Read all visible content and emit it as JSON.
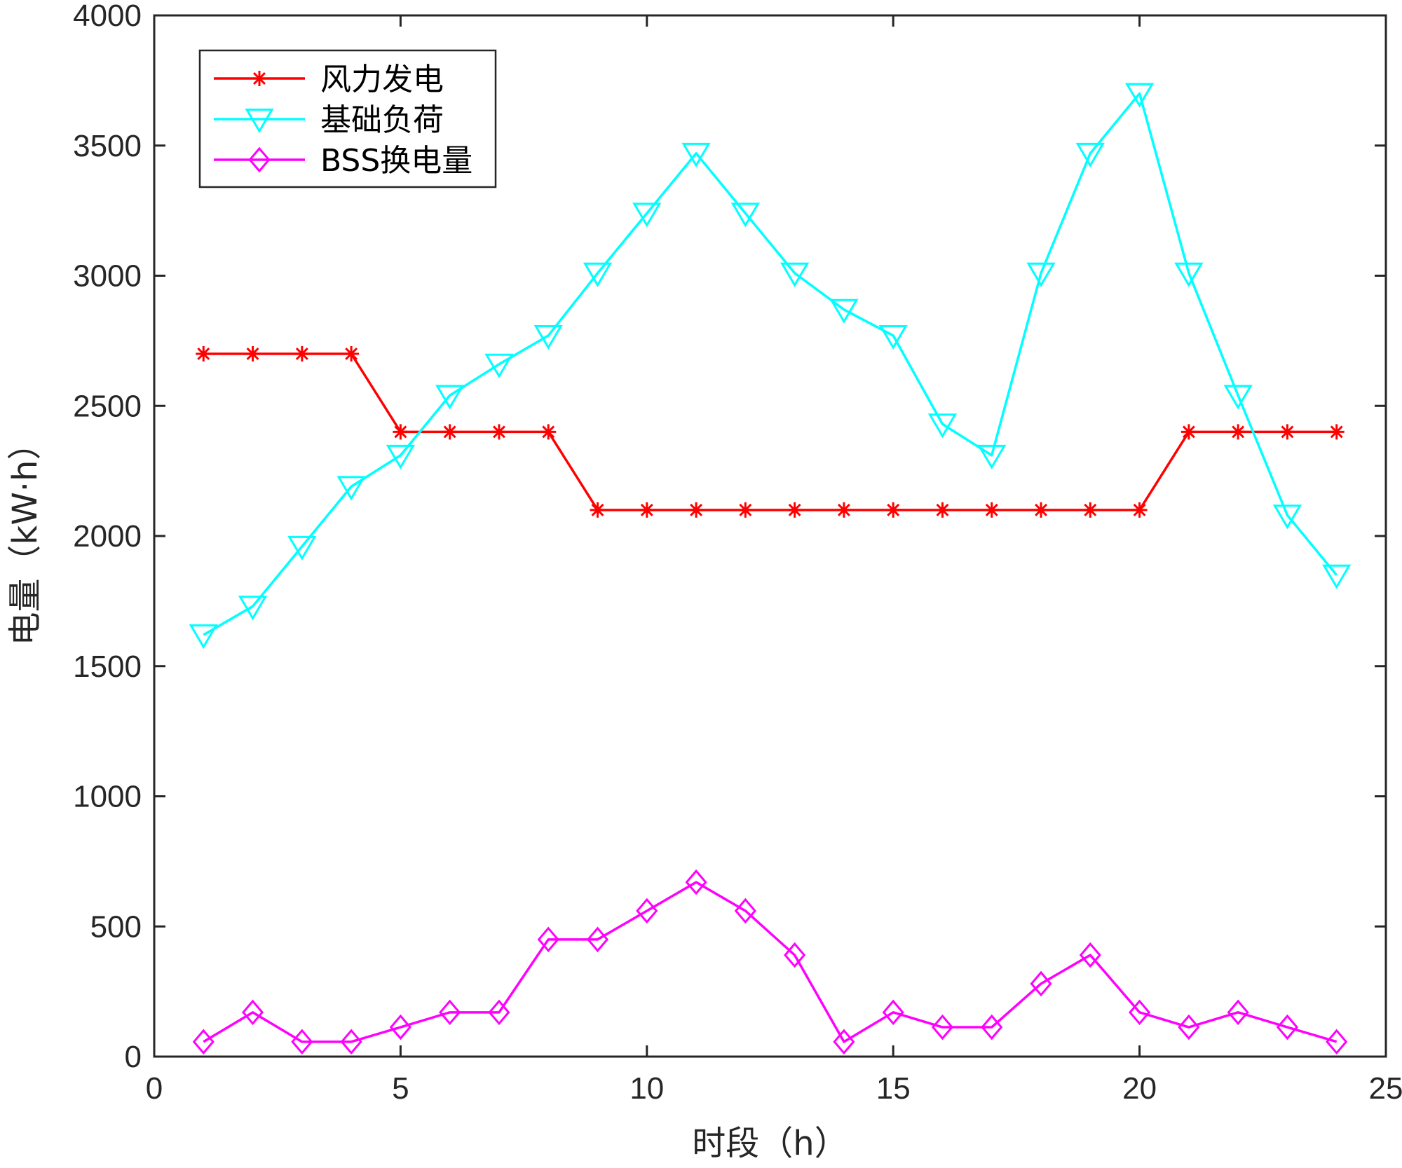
{
  "chart_data": {
    "type": "line",
    "xlabel": "时段（h）",
    "ylabel": "电量（kW·h）",
    "xlim": [
      0,
      25
    ],
    "ylim": [
      0,
      4000
    ],
    "xticks": [
      0,
      5,
      10,
      15,
      20,
      25
    ],
    "yticks": [
      0,
      500,
      1000,
      1500,
      2000,
      2500,
      3000,
      3500,
      4000
    ],
    "grid": false,
    "legend_position": "top-left",
    "x": [
      1,
      2,
      3,
      4,
      5,
      6,
      7,
      8,
      9,
      10,
      11,
      12,
      13,
      14,
      15,
      16,
      17,
      18,
      19,
      20,
      21,
      22,
      23,
      24
    ],
    "series": [
      {
        "name": "风力发电",
        "color": "#ff0000",
        "marker": "asterisk",
        "values": [
          2700,
          2700,
          2700,
          2700,
          2400,
          2400,
          2400,
          2400,
          2100,
          2100,
          2100,
          2100,
          2100,
          2100,
          2100,
          2100,
          2100,
          2100,
          2100,
          2100,
          2400,
          2400,
          2400,
          2400
        ]
      },
      {
        "name": "基础负荷",
        "color": "#00ffff",
        "marker": "triangle-down",
        "values": [
          1620,
          1730,
          1960,
          2190,
          2310,
          2540,
          2660,
          2770,
          3010,
          3240,
          3470,
          3240,
          3010,
          2870,
          2770,
          2430,
          2310,
          3010,
          3470,
          3700,
          3010,
          2540,
          2080,
          1850
        ]
      },
      {
        "name": "BSS换电量",
        "color": "#ff00ff",
        "marker": "diamond",
        "values": [
          57,
          170,
          57,
          57,
          113,
          170,
          170,
          450,
          450,
          560,
          670,
          560,
          390,
          57,
          170,
          113,
          113,
          280,
          390,
          170,
          113,
          170,
          113,
          57
        ]
      }
    ]
  }
}
